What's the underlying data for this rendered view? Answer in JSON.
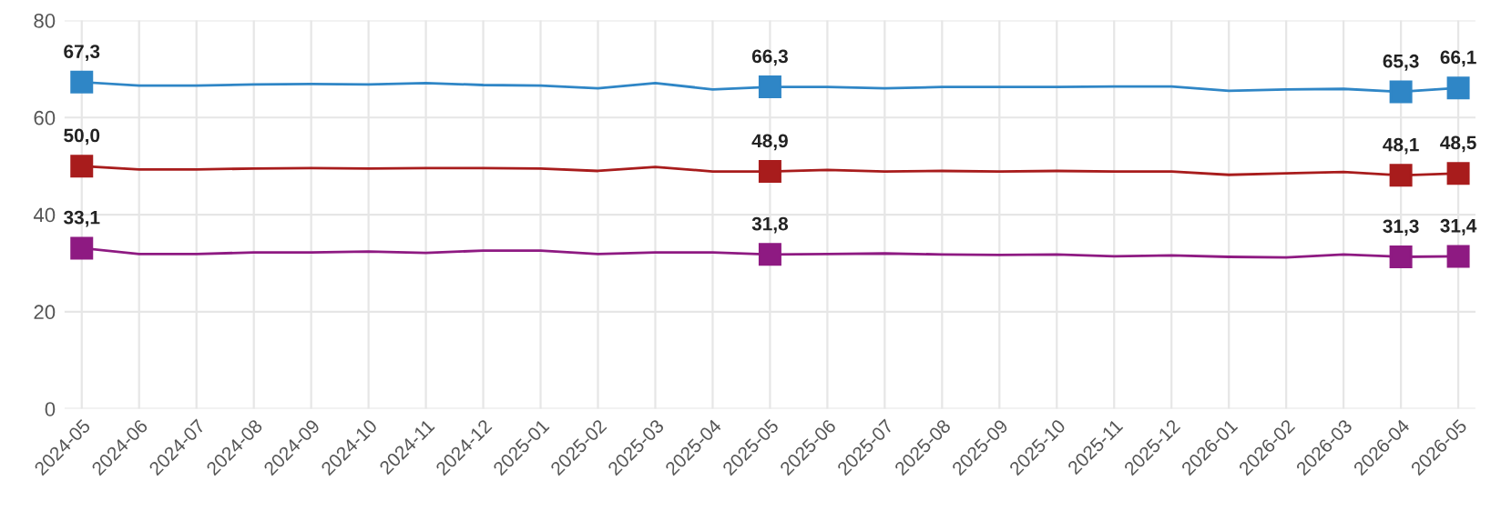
{
  "chart_data": {
    "type": "line",
    "categories": [
      "2024-05",
      "2024-06",
      "2024-07",
      "2024-08",
      "2024-09",
      "2024-10",
      "2024-11",
      "2024-12",
      "2025-01",
      "2025-02",
      "2025-03",
      "2025-04",
      "2025-05",
      "2025-06",
      "2025-07",
      "2025-08",
      "2025-09",
      "2025-10",
      "2025-11",
      "2025-12",
      "2026-01",
      "2026-02",
      "2026-03",
      "2026-04",
      "2026-05"
    ],
    "ylim": [
      0,
      80
    ],
    "yticks": [
      0,
      20,
      40,
      60,
      80
    ],
    "grid": true,
    "line_style": "solid",
    "series": [
      {
        "color": "#2f86c6",
        "values": [
          67.3,
          66.6,
          66.6,
          66.8,
          66.9,
          66.8,
          67.1,
          66.7,
          66.6,
          66.0,
          67.1,
          65.8,
          66.3,
          66.3,
          66.0,
          66.3,
          66.3,
          66.3,
          66.4,
          66.4,
          65.5,
          65.8,
          65.9,
          65.3,
          66.1
        ],
        "value_labels": [
          "67,3",
          null,
          null,
          null,
          null,
          null,
          null,
          null,
          null,
          null,
          null,
          null,
          "66,3",
          null,
          null,
          null,
          null,
          null,
          null,
          null,
          null,
          null,
          null,
          "65,3",
          "66,1"
        ]
      },
      {
        "color": "#a81c1c",
        "values": [
          50.0,
          49.3,
          49.3,
          49.5,
          49.6,
          49.5,
          49.6,
          49.6,
          49.5,
          49.0,
          49.8,
          48.9,
          48.9,
          49.2,
          48.9,
          49.0,
          48.9,
          49.0,
          48.9,
          48.9,
          48.2,
          48.5,
          48.8,
          48.1,
          48.5
        ],
        "value_labels": [
          "50,0",
          null,
          null,
          null,
          null,
          null,
          null,
          null,
          null,
          null,
          null,
          null,
          "48,9",
          null,
          null,
          null,
          null,
          null,
          null,
          null,
          null,
          null,
          null,
          "48,1",
          "48,5"
        ]
      },
      {
        "color": "#8e1a82",
        "values": [
          33.1,
          31.9,
          31.9,
          32.2,
          32.2,
          32.4,
          32.1,
          32.6,
          32.6,
          31.9,
          32.2,
          32.2,
          31.8,
          31.9,
          32.0,
          31.8,
          31.7,
          31.8,
          31.4,
          31.6,
          31.3,
          31.2,
          31.8,
          31.3,
          31.4
        ],
        "value_labels": [
          "33,1",
          null,
          null,
          null,
          null,
          null,
          null,
          null,
          null,
          null,
          null,
          null,
          "31,8",
          null,
          null,
          null,
          null,
          null,
          null,
          null,
          null,
          null,
          null,
          "31,3",
          "31,4"
        ]
      }
    ]
  }
}
